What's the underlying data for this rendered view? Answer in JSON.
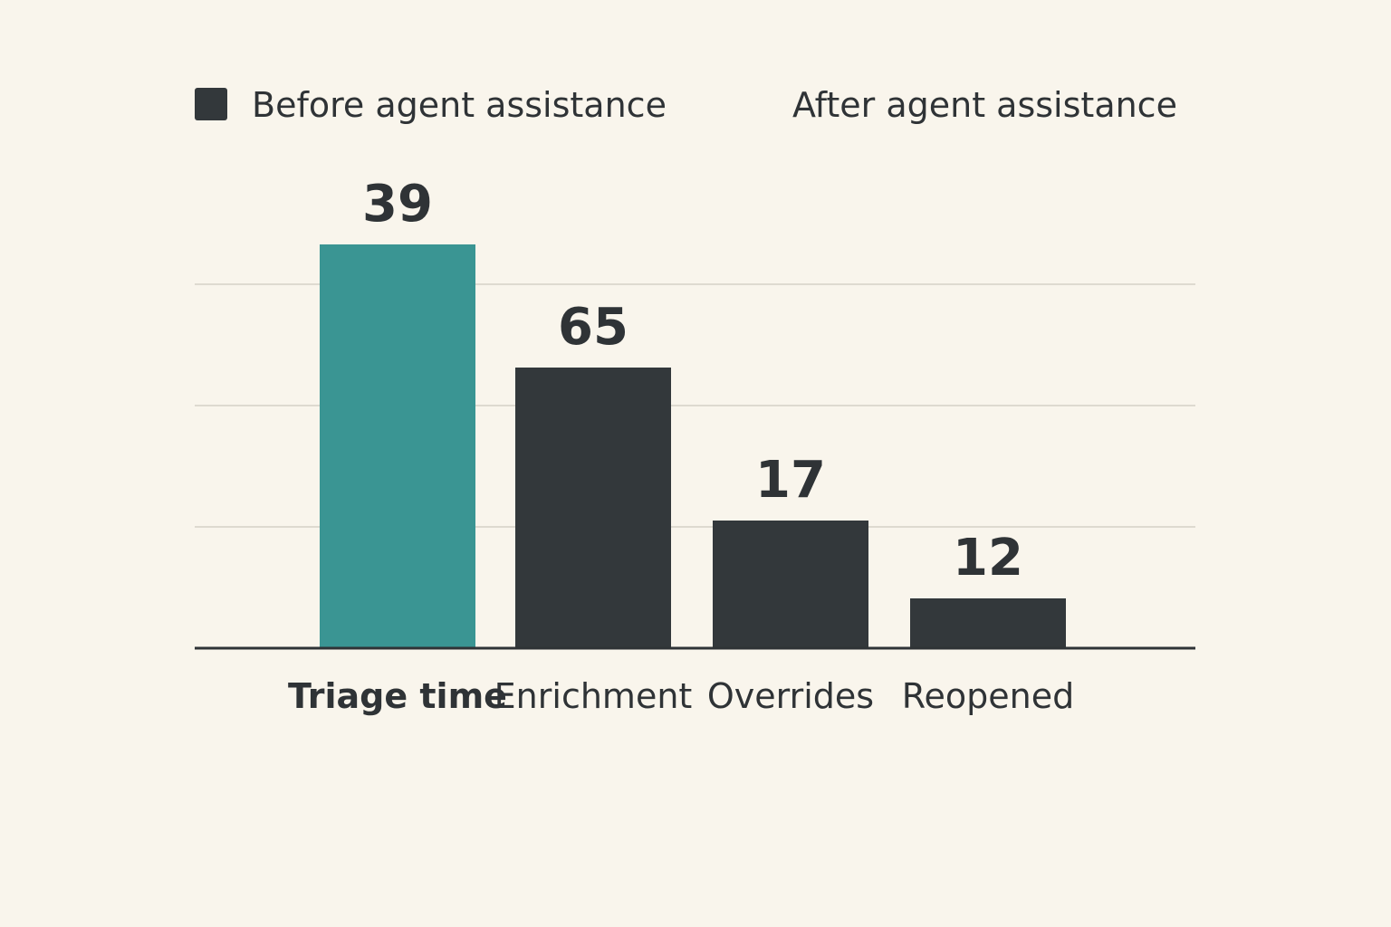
{
  "chart_data": {
    "type": "bar",
    "legend": [
      {
        "label": "Before agent assistance",
        "color": "#33383b",
        "swatch": true
      },
      {
        "label": "After agent assistance",
        "color": "#3a9593",
        "swatch": false
      }
    ],
    "categories": [
      "Triage time",
      "Enrichment",
      "Overrides",
      "Reopened"
    ],
    "values": [
      39,
      65,
      17,
      12
    ],
    "bar_colors": [
      "#3a9593",
      "#33383b",
      "#33383b",
      "#33383b"
    ],
    "emphasized_category": "Triage time",
    "grid": true,
    "legend_position": "top"
  },
  "colors": {
    "background": "#f9f5ec",
    "text": "#2f3336",
    "grid": "#dedad0"
  }
}
